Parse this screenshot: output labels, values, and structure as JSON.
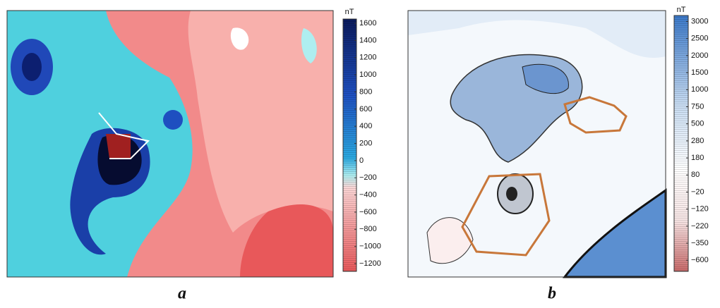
{
  "panels": [
    {
      "label": "a",
      "colorbar": {
        "unit": "nT",
        "lim": [
          -1290,
          1650
        ],
        "ticks": [
          1600,
          1400,
          1200,
          1000,
          800,
          600,
          400,
          200,
          0,
          {
            "value": -200,
            "label": "−200"
          },
          {
            "value": -400,
            "label": "−400"
          },
          {
            "value": -600,
            "label": "−600"
          },
          {
            "value": -800,
            "label": "−800"
          },
          {
            "value": -1000,
            "label": "−1000"
          },
          {
            "value": -1200,
            "label": "−1200"
          }
        ]
      }
    },
    {
      "label": "b",
      "colorbar": {
        "unit": "nT",
        "ticks": [
          3000,
          2500,
          2000,
          1500,
          1000,
          750,
          500,
          280,
          180,
          80,
          {
            "value": -20,
            "label": "−20"
          },
          {
            "value": -120,
            "label": "−120"
          },
          {
            "value": -220,
            "label": "−220"
          },
          {
            "value": -350,
            "label": "−350"
          },
          {
            "value": -600,
            "label": "−600"
          }
        ]
      }
    }
  ]
}
